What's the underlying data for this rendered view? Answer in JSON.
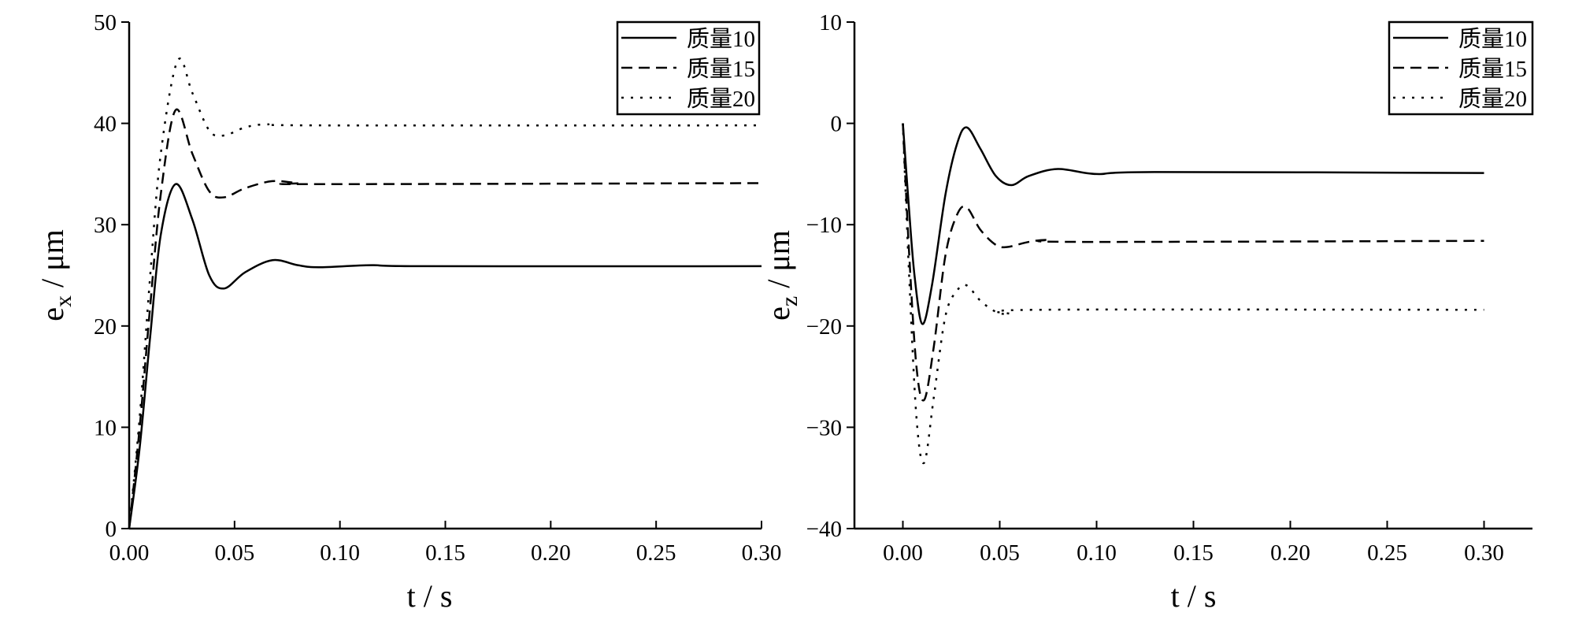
{
  "chart_data": [
    {
      "type": "line",
      "xlabel": "t / s",
      "ylabel": {
        "main": "e",
        "sub": "x",
        "rest": " / μm"
      },
      "xlim": [
        0,
        0.3
      ],
      "ylim": [
        0,
        50
      ],
      "xticks": [
        0,
        0.05,
        0.1,
        0.15,
        0.2,
        0.25,
        0.3
      ],
      "xtick_labels": [
        "0.00",
        "0.05",
        "0.10",
        "0.15",
        "0.20",
        "0.25",
        "0.30"
      ],
      "yticks": [
        0,
        10,
        20,
        30,
        40,
        50
      ],
      "ytick_labels": [
        "0",
        "10",
        "20",
        "30",
        "40",
        "50"
      ],
      "grid": false,
      "legend_placement": "top-right",
      "series": [
        {
          "name": "质量10",
          "style": "solid",
          "x": [
            0,
            0.005,
            0.01,
            0.015,
            0.022,
            0.03,
            0.038,
            0.045,
            0.055,
            0.068,
            0.08,
            0.09,
            0.115,
            0.14,
            0.3
          ],
          "y": [
            0,
            8,
            19,
            29,
            34,
            30.5,
            25,
            23.7,
            25.3,
            26.5,
            26,
            25.8,
            26,
            25.9,
            25.9
          ]
        },
        {
          "name": "质量15",
          "style": "dashed",
          "x": [
            0,
            0.005,
            0.01,
            0.015,
            0.022,
            0.03,
            0.038,
            0.045,
            0.055,
            0.068,
            0.08,
            0.09,
            0.3
          ],
          "y": [
            0,
            10,
            22,
            33,
            41.3,
            37,
            33.3,
            32.7,
            33.6,
            34.3,
            34.1,
            34,
            34.1
          ]
        },
        {
          "name": "质量20",
          "style": "dotted",
          "x": [
            0,
            0.005,
            0.01,
            0.015,
            0.023,
            0.03,
            0.038,
            0.045,
            0.055,
            0.065,
            0.09,
            0.3
          ],
          "y": [
            0,
            11,
            25,
            37,
            46.2,
            43,
            39.3,
            38.8,
            39.6,
            39.9,
            39.8,
            39.8
          ]
        }
      ]
    },
    {
      "type": "line",
      "xlabel": "t / s",
      "ylabel": {
        "main": "e",
        "sub": "z",
        "rest": " / μm"
      },
      "xlim": [
        -0.025,
        0.325
      ],
      "ylim": [
        -40,
        10
      ],
      "xticks": [
        0,
        0.05,
        0.1,
        0.15,
        0.2,
        0.25,
        0.3
      ],
      "xtick_labels": [
        "0.00",
        "0.05",
        "0.10",
        "0.15",
        "0.20",
        "0.25",
        "0.30"
      ],
      "yticks": [
        -40,
        -30,
        -20,
        -10,
        0,
        10
      ],
      "ytick_labels": [
        "−40",
        "−30",
        "−20",
        "−10",
        "0",
        "10"
      ],
      "grid": false,
      "legend_placement": "top-right",
      "series": [
        {
          "name": "质量10",
          "style": "solid",
          "x": [
            0,
            0.003,
            0.006,
            0.01,
            0.015,
            0.022,
            0.028,
            0.033,
            0.04,
            0.048,
            0.056,
            0.065,
            0.08,
            0.1,
            0.13,
            0.3
          ],
          "y": [
            0,
            -8,
            -15,
            -19.8,
            -16,
            -7,
            -2,
            -0.4,
            -2.5,
            -5.2,
            -6.1,
            -5.2,
            -4.5,
            -5,
            -4.8,
            -4.9
          ]
        },
        {
          "name": "质量15",
          "style": "dashed",
          "x": [
            0,
            0.003,
            0.007,
            0.011,
            0.016,
            0.022,
            0.028,
            0.033,
            0.04,
            0.048,
            0.054,
            0.065,
            0.075,
            0.09,
            0.3
          ],
          "y": [
            0,
            -12,
            -24,
            -27.3,
            -22,
            -13,
            -9,
            -8.3,
            -10.5,
            -12,
            -12.2,
            -11.7,
            -11.5,
            -11.7,
            -11.6
          ]
        },
        {
          "name": "质量20",
          "style": "dotted",
          "x": [
            0,
            0.003,
            0.007,
            0.011,
            0.016,
            0.022,
            0.028,
            0.033,
            0.04,
            0.048,
            0.055,
            0.07,
            0.3
          ],
          "y": [
            0,
            -14,
            -29,
            -33.5,
            -27,
            -19,
            -16.5,
            -16,
            -17.5,
            -18.6,
            -18.8,
            -18.4,
            -18.4
          ]
        }
      ]
    }
  ]
}
